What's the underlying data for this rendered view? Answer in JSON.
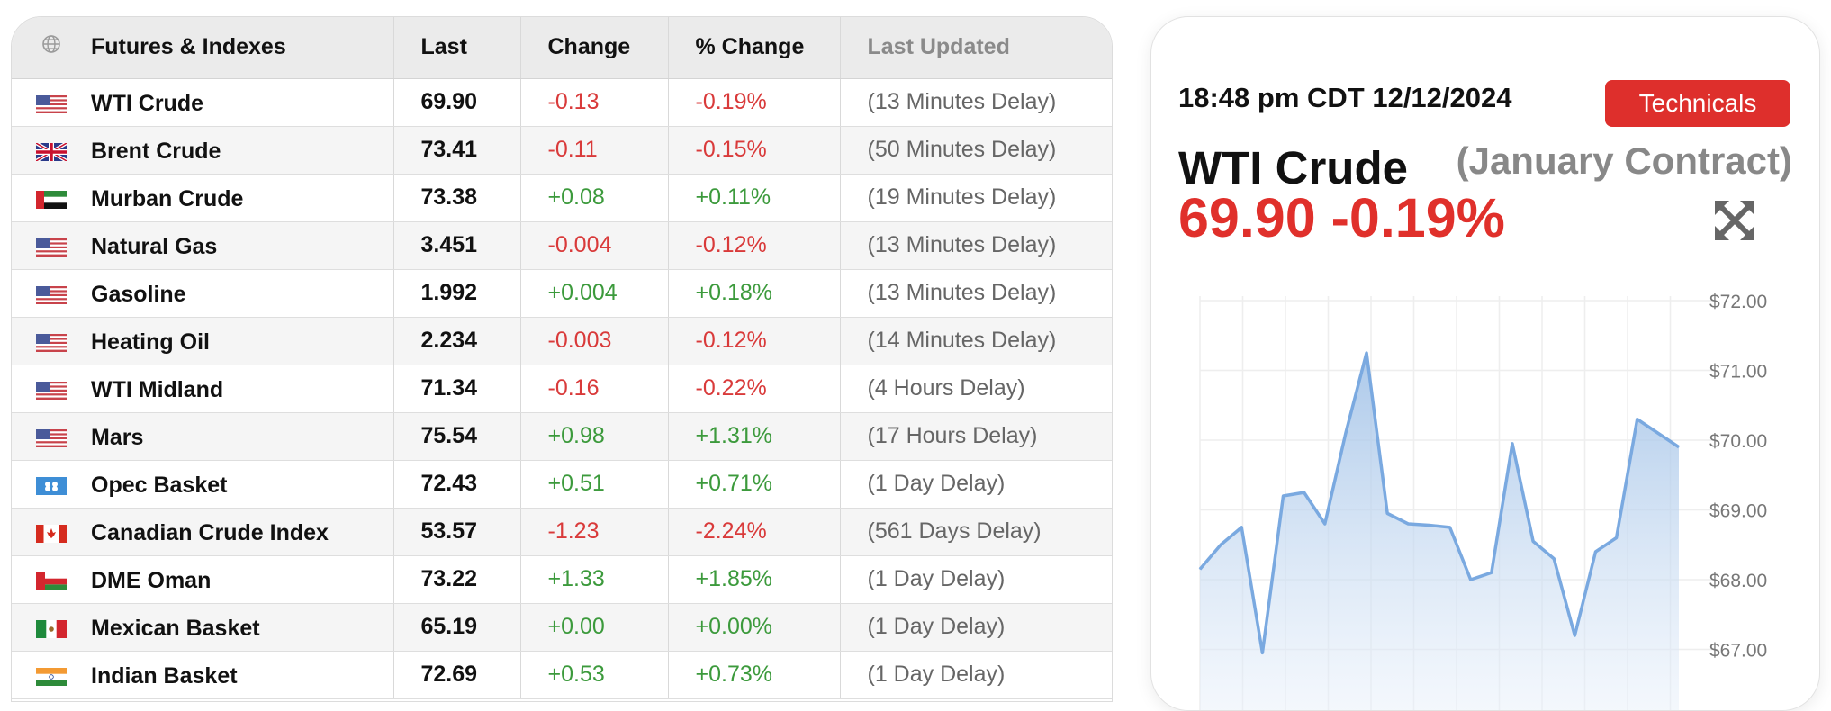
{
  "table": {
    "headers": {
      "name": "Futures & Indexes",
      "last": "Last",
      "change": "Change",
      "pct_change": "% Change",
      "last_updated": "Last Updated"
    },
    "header_icon": "globe-icon",
    "rows": [
      {
        "flag": "us",
        "name": "WTI Crude",
        "last": "69.90",
        "change": "-0.13",
        "pct": "-0.19%",
        "updated": "(13 Minutes Delay)",
        "dir": "neg"
      },
      {
        "flag": "uk",
        "name": "Brent Crude",
        "last": "73.41",
        "change": "-0.11",
        "pct": "-0.15%",
        "updated": "(50 Minutes Delay)",
        "dir": "neg"
      },
      {
        "flag": "ae",
        "name": "Murban Crude",
        "last": "73.38",
        "change": "+0.08",
        "pct": "+0.11%",
        "updated": "(19 Minutes Delay)",
        "dir": "pos"
      },
      {
        "flag": "us",
        "name": "Natural Gas",
        "last": "3.451",
        "change": "-0.004",
        "pct": "-0.12%",
        "updated": "(13 Minutes Delay)",
        "dir": "neg"
      },
      {
        "flag": "us",
        "name": "Gasoline",
        "last": "1.992",
        "change": "+0.004",
        "pct": "+0.18%",
        "updated": "(13 Minutes Delay)",
        "dir": "pos"
      },
      {
        "flag": "us",
        "name": "Heating Oil",
        "last": "2.234",
        "change": "-0.003",
        "pct": "-0.12%",
        "updated": "(14 Minutes Delay)",
        "dir": "neg"
      },
      {
        "flag": "us",
        "name": "WTI Midland",
        "last": "71.34",
        "change": "-0.16",
        "pct": "-0.22%",
        "updated": "(4 Hours Delay)",
        "dir": "neg"
      },
      {
        "flag": "us",
        "name": "Mars",
        "last": "75.54",
        "change": "+0.98",
        "pct": "+1.31%",
        "updated": "(17 Hours Delay)",
        "dir": "pos"
      },
      {
        "flag": "opec",
        "name": "Opec Basket",
        "last": "72.43",
        "change": "+0.51",
        "pct": "+0.71%",
        "updated": "(1 Day Delay)",
        "dir": "pos"
      },
      {
        "flag": "ca",
        "name": "Canadian Crude Index",
        "last": "53.57",
        "change": "-1.23",
        "pct": "-2.24%",
        "updated": "(561 Days Delay)",
        "dir": "neg"
      },
      {
        "flag": "om",
        "name": "DME Oman",
        "last": "73.22",
        "change": "+1.33",
        "pct": "+1.85%",
        "updated": "(1 Day Delay)",
        "dir": "pos"
      },
      {
        "flag": "mx",
        "name": "Mexican Basket",
        "last": "65.19",
        "change": "+0.00",
        "pct": "+0.00%",
        "updated": "(1 Day Delay)",
        "dir": "pos"
      },
      {
        "flag": "in",
        "name": "Indian Basket",
        "last": "72.69",
        "change": "+0.53",
        "pct": "+0.73%",
        "updated": "(1 Day Delay)",
        "dir": "pos"
      }
    ]
  },
  "card": {
    "timestamp": "18:48 pm CDT 12/12/2024",
    "technicals_label": "Technicals",
    "instrument": "WTI Crude",
    "contract": "(January Contract)",
    "price": "69.90",
    "pct_change": "-0.19%",
    "expand_icon": "expand-arrows-icon"
  },
  "colors": {
    "negative": "#d93a3a",
    "positive": "#3c9a3c",
    "accent_red": "#de2f2c",
    "chart_line": "#7aa9e0"
  },
  "chart_data": {
    "type": "area",
    "series": [
      {
        "values": [
          68.15,
          68.5,
          68.75,
          66.95,
          69.2,
          69.25,
          68.8,
          70.1,
          71.25,
          68.95,
          68.8,
          68.78,
          68.75,
          68.0,
          68.1,
          69.95,
          68.55,
          68.3,
          67.2,
          68.4,
          68.6,
          70.3,
          70.1,
          69.9
        ]
      }
    ],
    "y_ticks": [
      "$72.00",
      "$71.00",
      "$70.00",
      "$69.00",
      "$68.00",
      "$67.00"
    ],
    "ylim": [
      66.2,
      72.0
    ],
    "grid": true,
    "legend": "none",
    "y_axis_position": "right"
  }
}
